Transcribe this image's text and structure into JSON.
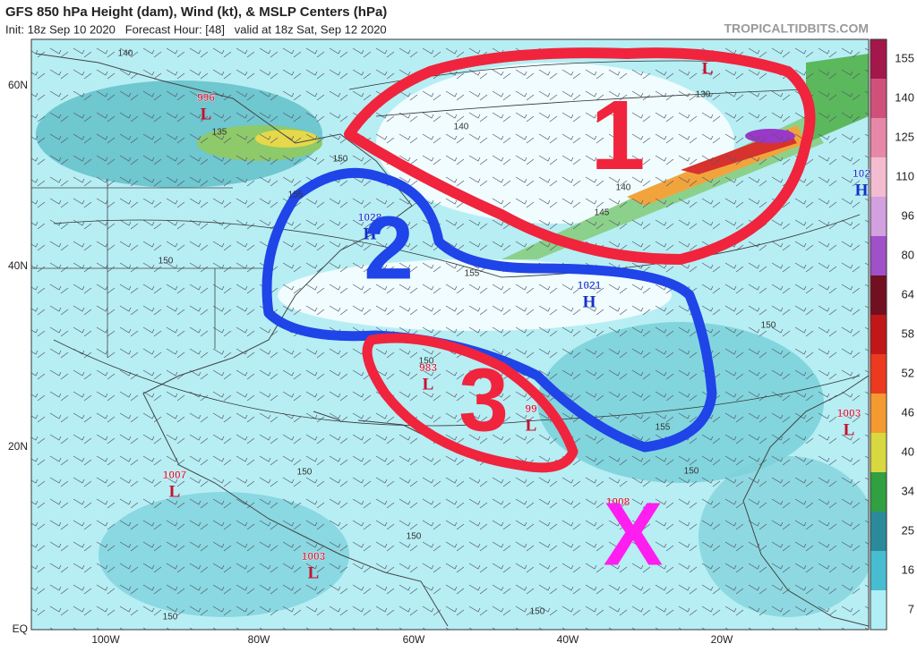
{
  "header": {
    "title": "GFS 850 hPa Height (dam), Wind (kt), & MSLP Centers (hPa)",
    "subtitle": "Init: 18z Sep 10 2020   Forecast Hour: [48]   valid at 18z Sat, Sep 12 2020",
    "credit": "TROPICALTIDBITS.COM"
  },
  "lat_labels": [
    "60N",
    "40N",
    "20N",
    "EQ"
  ],
  "lon_labels": [
    "100W",
    "80W",
    "60W",
    "40W",
    "20W"
  ],
  "colorbar": {
    "labels": [
      "155",
      "140",
      "125",
      "110",
      "96",
      "80",
      "64",
      "58",
      "52",
      "46",
      "40",
      "34",
      "25",
      "16",
      "7"
    ]
  },
  "pressure_centers": [
    {
      "pressure": "996",
      "symbol": "L"
    },
    {
      "pressure": "1028",
      "symbol": "H"
    },
    {
      "pressure": "1021",
      "symbol": "H"
    },
    {
      "pressure": "983",
      "symbol": "L"
    },
    {
      "pressure": "99",
      "symbol": "L"
    },
    {
      "pressure": "1003",
      "symbol": "L"
    },
    {
      "pressure": "1007",
      "symbol": "L"
    },
    {
      "pressure": "1003",
      "symbol": "L"
    },
    {
      "pressure": "1008"
    },
    {
      "symbol": "L"
    },
    {
      "pressure": "102",
      "symbol": "H"
    }
  ],
  "contour_labels": [
    "140",
    "140",
    "130",
    "135",
    "150",
    "155",
    "135",
    "140",
    "145",
    "150",
    "155",
    "150",
    "150",
    "155",
    "150",
    "150",
    "150",
    "150",
    "150"
  ],
  "annotations": [
    "1",
    "2",
    "3",
    "X"
  ]
}
